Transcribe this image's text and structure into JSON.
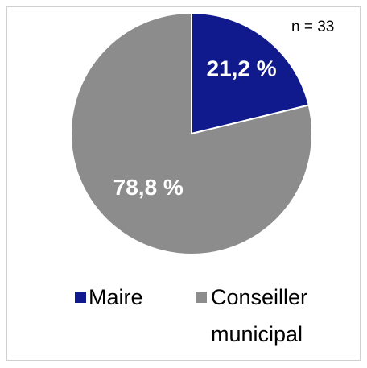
{
  "chart_data": {
    "type": "pie",
    "categories": [
      "Maire",
      "Conseiller municipal"
    ],
    "values": [
      21.2,
      78.8
    ],
    "value_labels": [
      "21,2 %",
      "78,8 %"
    ],
    "colors": [
      "#101a8c",
      "#8c8c8c"
    ],
    "annotation": "n = 33",
    "legend": "bottom"
  }
}
